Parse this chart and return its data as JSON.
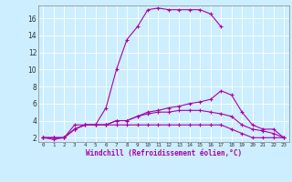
{
  "xlabel": "Windchill (Refroidissement éolien,°C)",
  "bg_color": "#cceeff",
  "line_color": "#aa00aa",
  "hours": [
    0,
    1,
    2,
    3,
    4,
    5,
    6,
    7,
    8,
    9,
    10,
    11,
    12,
    13,
    14,
    15,
    16,
    17,
    18,
    19,
    20,
    21,
    22,
    23
  ],
  "line1": [
    2.0,
    1.8,
    2.0,
    3.0,
    3.5,
    3.5,
    5.5,
    10.0,
    13.5,
    15.0,
    17.0,
    17.2,
    17.0,
    17.0,
    17.0,
    17.0,
    16.5,
    15.0,
    null,
    null,
    null,
    null,
    null,
    null
  ],
  "line2": [
    2.0,
    2.0,
    2.0,
    3.5,
    3.5,
    3.5,
    3.5,
    3.5,
    3.5,
    3.5,
    3.5,
    3.5,
    3.5,
    3.5,
    3.5,
    3.5,
    3.5,
    3.5,
    3.0,
    2.5,
    2.0,
    2.0,
    2.0,
    2.0
  ],
  "line3": [
    2.0,
    2.0,
    2.0,
    3.0,
    3.5,
    3.5,
    3.5,
    4.0,
    4.0,
    4.5,
    5.0,
    5.2,
    5.5,
    5.7,
    6.0,
    6.2,
    6.5,
    7.5,
    7.0,
    5.0,
    3.5,
    3.0,
    3.0,
    2.0
  ],
  "line4": [
    2.0,
    2.0,
    2.0,
    3.0,
    3.5,
    3.5,
    3.5,
    4.0,
    4.0,
    4.5,
    4.8,
    5.0,
    5.0,
    5.2,
    5.2,
    5.2,
    5.0,
    4.8,
    4.5,
    3.5,
    3.0,
    2.8,
    2.5,
    2.0
  ],
  "ylim": [
    1.5,
    17.5
  ],
  "yticks": [
    2,
    4,
    6,
    8,
    10,
    12,
    14,
    16
  ],
  "xlim": [
    -0.5,
    23.5
  ]
}
